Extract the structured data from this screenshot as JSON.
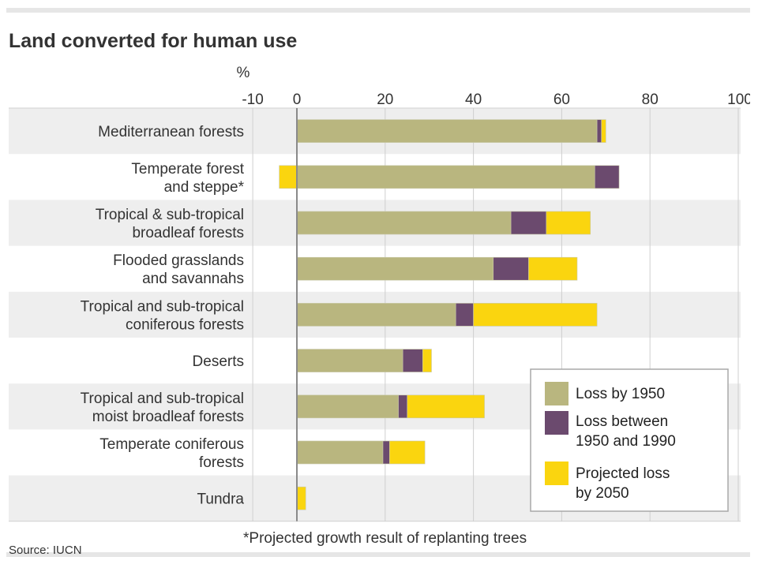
{
  "chart_data": {
    "type": "bar",
    "stacked": true,
    "orientation": "horizontal",
    "title": "Land converted for human use",
    "unit": "%",
    "xlim": [
      -10,
      100
    ],
    "ticks": [
      -10,
      0,
      20,
      40,
      60,
      80,
      100
    ],
    "grid": true,
    "legend_position": "bottom-right",
    "categories": [
      [
        "Mediterranean forests"
      ],
      [
        "Temperate forest",
        "and steppe*"
      ],
      [
        "Tropical & sub-tropical",
        "broadleaf forests"
      ],
      [
        "Flooded grasslands",
        "and savannahs"
      ],
      [
        "Tropical and sub-tropical",
        "coniferous forests"
      ],
      [
        "Deserts"
      ],
      [
        "Tropical and sub-tropical",
        "moist broadleaf forests"
      ],
      [
        "Temperate coniferous",
        "forests"
      ],
      [
        "Tundra"
      ]
    ],
    "series": [
      {
        "name": "Loss by 1950",
        "color": "#b9b67f",
        "values": [
          68,
          67.5,
          48.5,
          44.5,
          36,
          24,
          23,
          19.5,
          0
        ]
      },
      {
        "name": "Loss between 1950 and 1990",
        "color": "#6b4a6e",
        "values": [
          1,
          5.5,
          8,
          8,
          4,
          4.5,
          2,
          1.5,
          0
        ]
      },
      {
        "name": "Projected loss by 2050",
        "color": "#fad50f",
        "values": [
          1,
          -4,
          10,
          11,
          28,
          2,
          17.5,
          8,
          2
        ]
      }
    ],
    "legend_labels": [
      [
        "Loss by 1950"
      ],
      [
        "Loss between",
        "1950 and 1990"
      ],
      [
        "Projected loss",
        "by 2050"
      ]
    ],
    "annotation": "*Projected growth result of replanting trees",
    "source": "Source: IUCN"
  }
}
